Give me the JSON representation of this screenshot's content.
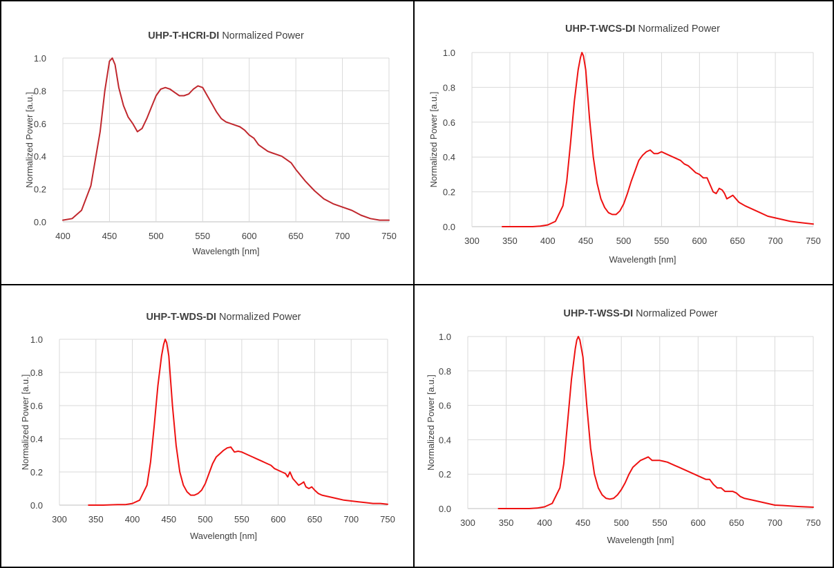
{
  "colors": {
    "line_red": "#ee1111",
    "line_darkred": "#c0272d",
    "grid": "#d9d9d9",
    "axis": "#bfbfbf",
    "text": "#404040",
    "border": "#000000"
  },
  "chart_data": [
    {
      "type": "line",
      "title_bold": "UHP-T-HCRI-DI",
      "title_rest": " Normalized Power",
      "xlabel": "Wavelength [nm]",
      "ylabel": "Normalized Power [a.u.]",
      "xlim": [
        400,
        750
      ],
      "ylim": [
        0,
        1
      ],
      "xticks": [
        400,
        450,
        500,
        550,
        600,
        650,
        700,
        750
      ],
      "yticks": [
        0.0,
        0.2,
        0.4,
        0.6,
        0.8,
        1.0
      ],
      "grid": true,
      "color": "#c0272d",
      "series": [
        {
          "x": [
            400,
            410,
            420,
            430,
            440,
            445,
            450,
            453,
            456,
            460,
            465,
            470,
            475,
            480,
            485,
            490,
            495,
            500,
            505,
            510,
            515,
            520,
            525,
            530,
            535,
            540,
            545,
            550,
            555,
            560,
            565,
            570,
            575,
            580,
            585,
            590,
            595,
            600,
            605,
            610,
            615,
            620,
            625,
            630,
            635,
            640,
            645,
            650,
            660,
            670,
            680,
            690,
            700,
            710,
            720,
            730,
            740,
            750
          ],
          "values": [
            0.01,
            0.02,
            0.07,
            0.22,
            0.55,
            0.8,
            0.98,
            1.0,
            0.96,
            0.82,
            0.71,
            0.64,
            0.6,
            0.55,
            0.57,
            0.63,
            0.7,
            0.77,
            0.81,
            0.82,
            0.81,
            0.79,
            0.77,
            0.77,
            0.78,
            0.81,
            0.83,
            0.82,
            0.77,
            0.72,
            0.67,
            0.63,
            0.61,
            0.6,
            0.59,
            0.58,
            0.56,
            0.53,
            0.51,
            0.47,
            0.45,
            0.43,
            0.42,
            0.41,
            0.4,
            0.38,
            0.36,
            0.32,
            0.25,
            0.19,
            0.14,
            0.11,
            0.09,
            0.07,
            0.04,
            0.02,
            0.01,
            0.01
          ]
        }
      ]
    },
    {
      "type": "line",
      "title_bold": "UHP-T-WCS-DI",
      "title_rest": " Normalized Power",
      "xlabel": "Wavelength [nm]",
      "ylabel": "Normalized Power [a.u.]",
      "xlim": [
        300,
        750
      ],
      "ylim": [
        0,
        1
      ],
      "xticks": [
        300,
        350,
        400,
        450,
        500,
        550,
        600,
        650,
        700,
        750
      ],
      "yticks": [
        0.0,
        0.2,
        0.4,
        0.6,
        0.8,
        1.0
      ],
      "grid": true,
      "color": "#ee1111",
      "series": [
        {
          "x": [
            340,
            360,
            380,
            390,
            400,
            410,
            420,
            425,
            430,
            435,
            440,
            443,
            445,
            447,
            450,
            455,
            460,
            465,
            470,
            475,
            480,
            485,
            490,
            495,
            500,
            505,
            510,
            515,
            520,
            525,
            530,
            535,
            540,
            545,
            550,
            555,
            560,
            565,
            570,
            575,
            580,
            585,
            590,
            595,
            600,
            605,
            610,
            612,
            615,
            618,
            622,
            626,
            630,
            633,
            636,
            640,
            644,
            648,
            652,
            656,
            660,
            670,
            680,
            690,
            700,
            710,
            720,
            730,
            740,
            750
          ],
          "values": [
            0,
            0,
            0,
            0.003,
            0.01,
            0.03,
            0.12,
            0.26,
            0.48,
            0.72,
            0.9,
            0.97,
            1.0,
            0.98,
            0.9,
            0.62,
            0.4,
            0.25,
            0.16,
            0.11,
            0.08,
            0.07,
            0.07,
            0.09,
            0.13,
            0.19,
            0.26,
            0.32,
            0.38,
            0.41,
            0.43,
            0.44,
            0.42,
            0.42,
            0.43,
            0.42,
            0.41,
            0.4,
            0.39,
            0.38,
            0.36,
            0.35,
            0.33,
            0.31,
            0.3,
            0.28,
            0.28,
            0.26,
            0.23,
            0.2,
            0.19,
            0.22,
            0.21,
            0.19,
            0.16,
            0.17,
            0.18,
            0.16,
            0.14,
            0.13,
            0.12,
            0.1,
            0.08,
            0.06,
            0.05,
            0.04,
            0.03,
            0.025,
            0.02,
            0.015
          ]
        }
      ]
    },
    {
      "type": "line",
      "title_bold": "UHP-T-WDS-DI",
      "title_rest": " Normalized Power",
      "xlabel": "Wavelength [nm]",
      "ylabel": "Normalized Power [a.u.]",
      "xlim": [
        300,
        750
      ],
      "ylim": [
        0,
        1
      ],
      "xticks": [
        300,
        350,
        400,
        450,
        500,
        550,
        600,
        650,
        700,
        750
      ],
      "yticks": [
        0.0,
        0.2,
        0.4,
        0.6,
        0.8,
        1.0
      ],
      "grid": true,
      "color": "#ee1111",
      "series": [
        {
          "x": [
            340,
            360,
            380,
            390,
            400,
            410,
            420,
            425,
            430,
            435,
            440,
            443,
            445,
            447,
            450,
            455,
            460,
            465,
            470,
            475,
            480,
            485,
            490,
            495,
            500,
            505,
            510,
            515,
            520,
            525,
            530,
            535,
            540,
            545,
            550,
            555,
            560,
            565,
            570,
            575,
            580,
            585,
            590,
            595,
            600,
            605,
            610,
            613,
            616,
            620,
            624,
            628,
            632,
            635,
            638,
            642,
            646,
            650,
            655,
            660,
            670,
            680,
            690,
            700,
            710,
            720,
            730,
            740,
            750
          ],
          "values": [
            0,
            0,
            0.003,
            0.003,
            0.01,
            0.03,
            0.12,
            0.26,
            0.48,
            0.72,
            0.9,
            0.97,
            1.0,
            0.98,
            0.9,
            0.6,
            0.36,
            0.2,
            0.12,
            0.08,
            0.06,
            0.06,
            0.07,
            0.09,
            0.13,
            0.19,
            0.25,
            0.29,
            0.31,
            0.33,
            0.345,
            0.35,
            0.32,
            0.325,
            0.32,
            0.31,
            0.3,
            0.29,
            0.28,
            0.27,
            0.26,
            0.25,
            0.24,
            0.22,
            0.21,
            0.2,
            0.19,
            0.17,
            0.2,
            0.16,
            0.14,
            0.12,
            0.13,
            0.14,
            0.11,
            0.1,
            0.11,
            0.09,
            0.07,
            0.06,
            0.05,
            0.04,
            0.03,
            0.025,
            0.02,
            0.015,
            0.01,
            0.01,
            0.005
          ]
        }
      ]
    },
    {
      "type": "line",
      "title_bold": "UHP-T-WSS-DI",
      "title_rest": " Normalized Power",
      "xlabel": "Wavelength [nm]",
      "ylabel": "Normalized Power [a.u.]",
      "xlim": [
        300,
        750
      ],
      "ylim": [
        0,
        1
      ],
      "xticks": [
        300,
        350,
        400,
        450,
        500,
        550,
        600,
        650,
        700,
        750
      ],
      "yticks": [
        0.0,
        0.2,
        0.4,
        0.6,
        0.8,
        1.0
      ],
      "grid": true,
      "color": "#ee1111",
      "series": [
        {
          "x": [
            340,
            360,
            380,
            390,
            400,
            410,
            420,
            425,
            430,
            435,
            440,
            442,
            444,
            446,
            450,
            455,
            460,
            465,
            470,
            475,
            480,
            485,
            490,
            495,
            500,
            505,
            510,
            515,
            520,
            525,
            530,
            535,
            540,
            545,
            550,
            555,
            560,
            565,
            570,
            575,
            580,
            585,
            590,
            595,
            600,
            605,
            610,
            615,
            620,
            625,
            630,
            635,
            640,
            645,
            650,
            655,
            660,
            670,
            680,
            690,
            700,
            710,
            720,
            730,
            740,
            750
          ],
          "values": [
            0,
            0,
            0,
            0.003,
            0.01,
            0.03,
            0.12,
            0.26,
            0.5,
            0.75,
            0.93,
            0.98,
            1.0,
            0.98,
            0.88,
            0.6,
            0.35,
            0.2,
            0.12,
            0.08,
            0.06,
            0.055,
            0.06,
            0.08,
            0.11,
            0.15,
            0.2,
            0.24,
            0.26,
            0.28,
            0.29,
            0.3,
            0.28,
            0.28,
            0.28,
            0.275,
            0.27,
            0.26,
            0.25,
            0.24,
            0.23,
            0.22,
            0.21,
            0.2,
            0.19,
            0.18,
            0.17,
            0.17,
            0.14,
            0.12,
            0.12,
            0.1,
            0.1,
            0.1,
            0.09,
            0.07,
            0.06,
            0.05,
            0.04,
            0.03,
            0.02,
            0.018,
            0.015,
            0.012,
            0.01,
            0.008
          ]
        }
      ]
    }
  ]
}
